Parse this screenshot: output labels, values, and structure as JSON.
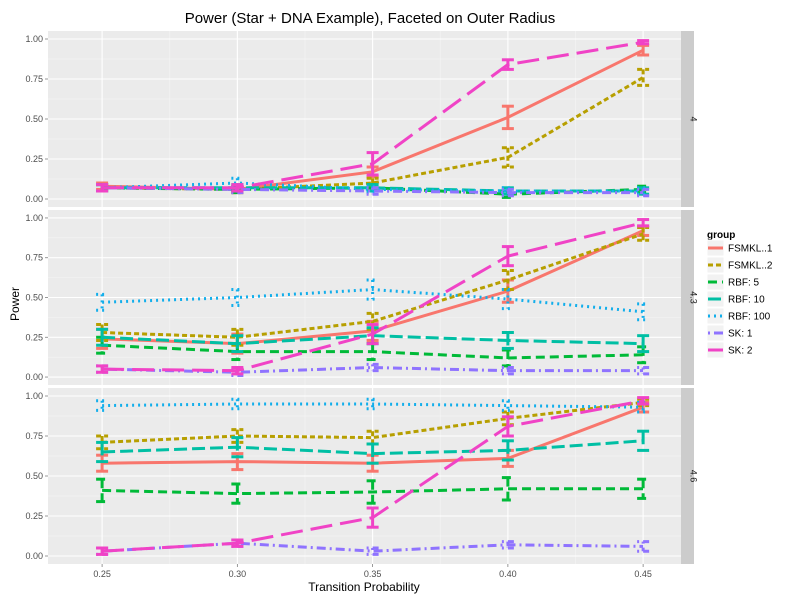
{
  "chart_data": {
    "type": "line",
    "title": "Power (Star + DNA Example), Faceted on Outer Radius",
    "xlabel": "Transition Probability",
    "ylabel": "Power",
    "x": [
      0.25,
      0.3,
      0.35,
      0.4,
      0.45
    ],
    "x_tick_labels": [
      "0.25",
      "0.30",
      "0.35",
      "0.40",
      "0.45"
    ],
    "xlim": [
      0.23,
      0.464
    ],
    "ylim": [
      -0.05,
      1.05
    ],
    "y_ticks": [
      0,
      0.25,
      0.5,
      0.75,
      1.0
    ],
    "y_tick_labels": [
      "0.00",
      "0.25",
      "0.50",
      "0.75",
      "1.00"
    ],
    "grid": true,
    "legend": {
      "title": "group",
      "position": "right",
      "entries": [
        {
          "label": "FSMKL..1",
          "color": "#F8766D",
          "dash": "solid"
        },
        {
          "label": "FSMKL..2",
          "color": "#B79F00",
          "dash": "dashed"
        },
        {
          "label": "RBF: 5",
          "color": "#00BA38",
          "dash": "dashed-long"
        },
        {
          "label": "RBF: 10",
          "color": "#00BFA4",
          "dash": "long"
        },
        {
          "label": "RBF: 100",
          "color": "#12AEEB",
          "dash": "dotted"
        },
        {
          "label": "SK: 1",
          "color": "#8F73FF",
          "dash": "dotdash"
        },
        {
          "label": "SK: 2",
          "color": "#F043C6",
          "dash": "longdash"
        }
      ]
    },
    "facets": [
      {
        "label": "4",
        "series": [
          {
            "name": "FSMKL..1",
            "values": [
              0.08,
              0.06,
              0.17,
              0.51,
              0.93
            ],
            "err": [
              0.02,
              0.02,
              0.03,
              0.07,
              0.03
            ]
          },
          {
            "name": "FSMKL..2",
            "values": [
              0.07,
              0.06,
              0.1,
              0.26,
              0.76
            ],
            "err": [
              0.02,
              0.02,
              0.03,
              0.06,
              0.05
            ]
          },
          {
            "name": "RBF: 5",
            "values": [
              0.07,
              0.06,
              0.07,
              0.03,
              0.06
            ],
            "err": [
              0.02,
              0.02,
              0.02,
              0.02,
              0.02
            ]
          },
          {
            "name": "RBF: 10",
            "values": [
              0.07,
              0.07,
              0.07,
              0.05,
              0.05
            ],
            "err": [
              0.02,
              0.02,
              0.02,
              0.02,
              0.02
            ]
          },
          {
            "name": "RBF: 100",
            "values": [
              0.07,
              0.1,
              0.06,
              0.05,
              0.05
            ],
            "err": [
              0.02,
              0.03,
              0.02,
              0.02,
              0.02
            ]
          },
          {
            "name": "SK: 1",
            "values": [
              0.07,
              0.06,
              0.05,
              0.04,
              0.04
            ],
            "err": [
              0.02,
              0.02,
              0.02,
              0.02,
              0.02
            ]
          },
          {
            "name": "SK: 2",
            "values": [
              0.07,
              0.07,
              0.22,
              0.84,
              0.98
            ],
            "err": [
              0.02,
              0.02,
              0.07,
              0.03,
              0.01
            ]
          }
        ]
      },
      {
        "label": "4.3",
        "series": [
          {
            "name": "FSMKL..1",
            "values": [
              0.24,
              0.21,
              0.29,
              0.54,
              0.92
            ],
            "err": [
              0.06,
              0.06,
              0.06,
              0.07,
              0.03
            ]
          },
          {
            "name": "FSMKL..2",
            "values": [
              0.28,
              0.25,
              0.35,
              0.61,
              0.9
            ],
            "err": [
              0.05,
              0.05,
              0.05,
              0.06,
              0.04
            ]
          },
          {
            "name": "RBF: 5",
            "values": [
              0.2,
              0.16,
              0.16,
              0.12,
              0.14
            ],
            "err": [
              0.05,
              0.05,
              0.05,
              0.05,
              0.05
            ]
          },
          {
            "name": "RBF: 10",
            "values": [
              0.25,
              0.21,
              0.26,
              0.23,
              0.21
            ],
            "err": [
              0.05,
              0.05,
              0.05,
              0.05,
              0.05
            ]
          },
          {
            "name": "RBF: 100",
            "values": [
              0.47,
              0.5,
              0.55,
              0.49,
              0.41
            ],
            "err": [
              0.05,
              0.05,
              0.06,
              0.06,
              0.05
            ]
          },
          {
            "name": "SK: 1",
            "values": [
              0.05,
              0.03,
              0.06,
              0.04,
              0.04
            ],
            "err": [
              0.02,
              0.02,
              0.02,
              0.02,
              0.02
            ]
          },
          {
            "name": "SK: 2",
            "values": [
              0.05,
              0.04,
              0.27,
              0.76,
              0.97
            ],
            "err": [
              0.02,
              0.02,
              0.06,
              0.06,
              0.02
            ]
          }
        ]
      },
      {
        "label": "4.6",
        "series": [
          {
            "name": "FSMKL..1",
            "values": [
              0.58,
              0.59,
              0.58,
              0.61,
              0.93
            ],
            "err": [
              0.05,
              0.05,
              0.05,
              0.05,
              0.03
            ]
          },
          {
            "name": "FSMKL..2",
            "values": [
              0.71,
              0.75,
              0.74,
              0.86,
              0.96
            ],
            "err": [
              0.04,
              0.04,
              0.04,
              0.04,
              0.02
            ]
          },
          {
            "name": "RBF: 5",
            "values": [
              0.41,
              0.39,
              0.4,
              0.42,
              0.42
            ],
            "err": [
              0.07,
              0.06,
              0.07,
              0.07,
              0.06
            ]
          },
          {
            "name": "RBF: 10",
            "values": [
              0.65,
              0.68,
              0.64,
              0.66,
              0.72
            ],
            "err": [
              0.06,
              0.06,
              0.06,
              0.06,
              0.06
            ]
          },
          {
            "name": "RBF: 100",
            "values": [
              0.94,
              0.95,
              0.95,
              0.94,
              0.93
            ],
            "err": [
              0.03,
              0.03,
              0.03,
              0.03,
              0.03
            ]
          },
          {
            "name": "SK: 1",
            "values": [
              0.03,
              0.08,
              0.03,
              0.07,
              0.06
            ],
            "err": [
              0.02,
              0.02,
              0.02,
              0.02,
              0.03
            ]
          },
          {
            "name": "SK: 2",
            "values": [
              0.03,
              0.08,
              0.24,
              0.81,
              0.97
            ],
            "err": [
              0.02,
              0.02,
              0.06,
              0.06,
              0.02
            ]
          }
        ]
      }
    ]
  }
}
